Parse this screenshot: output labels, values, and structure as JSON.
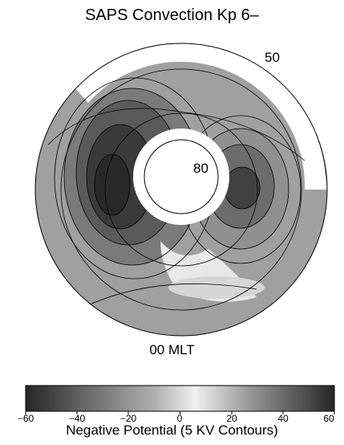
{
  "figure": {
    "title": "SAPS Convection Kp 6–",
    "bottom_label": "00 MLT",
    "latitude_labels": [
      "50",
      "80"
    ]
  },
  "colorbar": {
    "label": "Negative Potential (5 KV Contours)",
    "min": -60,
    "max": 60,
    "tick_labels": [
      "−60",
      "−40",
      "−20",
      "0",
      "20",
      "40",
      "60"
    ],
    "tick_values": [
      -60,
      -40,
      -20,
      0,
      20,
      40,
      60
    ]
  },
  "colors": {
    "background_potential": "#a0a0a0",
    "strong_negative": "#2a2a2a",
    "near_zero": "#e6e6e6"
  }
}
